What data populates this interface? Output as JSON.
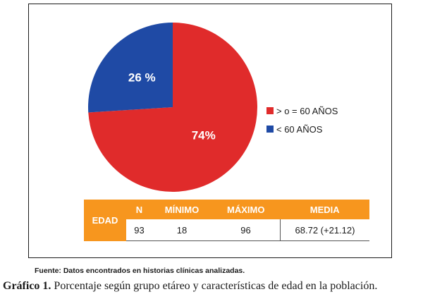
{
  "chart_data": {
    "type": "pie",
    "slices": [
      {
        "label": "> o = 60 AÑOS",
        "value": 74,
        "display": "74%",
        "color": "#e02b2b"
      },
      {
        "label": "< 60 AÑOS",
        "value": 26,
        "display": "26 %",
        "color": "#1f4aa5"
      }
    ],
    "legend_position": "right"
  },
  "table": {
    "row_label": "EDAD",
    "headers": [
      "N",
      "MÍNIMO",
      "MÁXIMO",
      "MEDIA"
    ],
    "values": [
      "93",
      "18",
      "96",
      "68.72 (+21.12)"
    ],
    "header_color": "#f7961e"
  },
  "source": "Fuente: Datos encontrados en historias clínicas analizadas.",
  "caption": {
    "prefix": "Gráfico 1.",
    "text": " Porcentaje según grupo etáreo y características de edad en la población."
  }
}
